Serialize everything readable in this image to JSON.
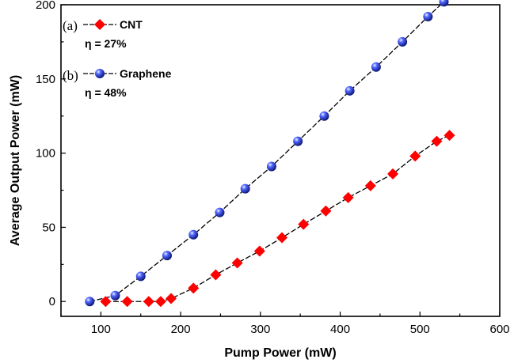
{
  "chart_data": {
    "type": "scatter",
    "xlabel": "Pump Power (mW)",
    "ylabel": "Average Output Power (mW)",
    "xlim": [
      50,
      600
    ],
    "ylim": [
      -10,
      200
    ],
    "xticks": [
      100,
      200,
      300,
      400,
      500,
      600
    ],
    "yticks": [
      0,
      50,
      100,
      150,
      200
    ],
    "grid": false,
    "legend_position": "top-left",
    "series": [
      {
        "name": "CNT",
        "tag": "(a)",
        "efficiency": "η = 27%",
        "marker": "diamond",
        "color": "#ff0000",
        "x": [
          106,
          133,
          160,
          175,
          188,
          216,
          244,
          271,
          299,
          327,
          354,
          382,
          410,
          438,
          466,
          494,
          521,
          537
        ],
        "y": [
          0,
          0,
          0,
          0,
          2,
          9,
          18,
          26,
          34,
          43,
          52,
          61,
          70,
          78,
          86,
          98,
          108,
          112
        ]
      },
      {
        "name": "Graphene",
        "tag": "(b)",
        "efficiency": "η = 48%",
        "marker": "sphere",
        "color": "#2233dd",
        "x": [
          86,
          118,
          150,
          183,
          216,
          249,
          281,
          314,
          347,
          380,
          412,
          445,
          478,
          510,
          530
        ],
        "y": [
          0,
          4,
          17,
          31,
          45,
          60,
          76,
          91,
          108,
          125,
          142,
          158,
          175,
          192,
          202
        ]
      }
    ]
  }
}
